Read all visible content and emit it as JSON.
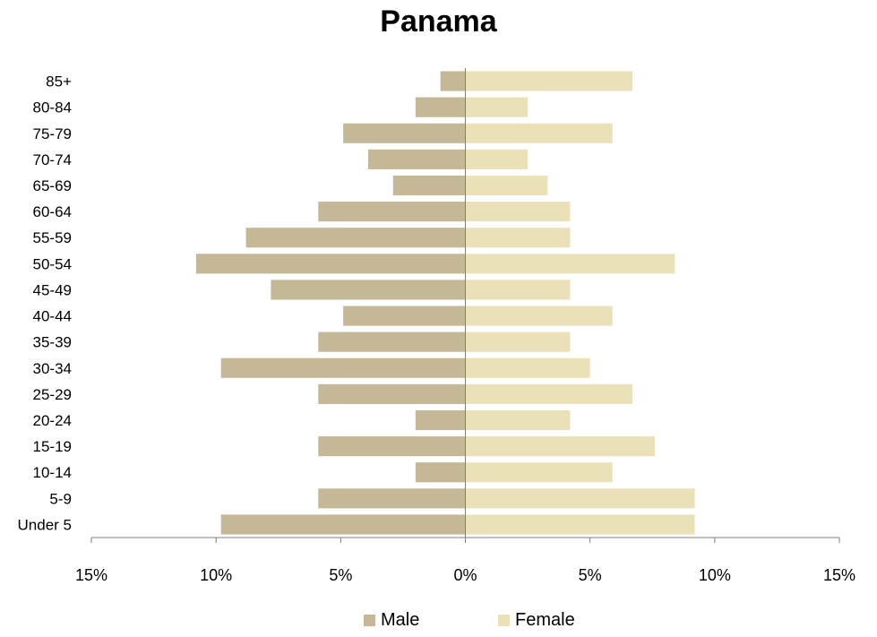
{
  "chart_data": {
    "type": "bar",
    "orientation": "horizontal",
    "title": "Panama",
    "categories": [
      "Under 5",
      "5-9",
      "10-14",
      "15-19",
      "20-24",
      "25-29",
      "30-34",
      "35-39",
      "40-44",
      "45-49",
      "50-54",
      "55-59",
      "60-64",
      "65-69",
      "70-74",
      "75-79",
      "80-84",
      "85+"
    ],
    "series": [
      {
        "name": "Male",
        "color": "#c4b896",
        "values": [
          9.8,
          5.9,
          2.0,
          5.9,
          2.0,
          5.9,
          9.8,
          5.9,
          4.9,
          7.8,
          10.8,
          8.8,
          5.9,
          2.9,
          3.9,
          4.9,
          2.0,
          1.0
        ]
      },
      {
        "name": "Female",
        "color": "#ebe1b9",
        "values": [
          9.2,
          9.2,
          5.9,
          7.6,
          4.2,
          6.7,
          5.0,
          4.2,
          5.9,
          4.2,
          8.4,
          4.2,
          4.2,
          3.3,
          2.5,
          5.9,
          2.5,
          6.7
        ]
      }
    ],
    "xlim": [
      -15,
      15
    ],
    "xticks": [
      -15,
      -10,
      -5,
      0,
      5,
      10,
      15
    ],
    "xtick_labels": [
      "15%",
      "10%",
      "5%",
      "0%",
      "5%",
      "10%",
      "15%"
    ],
    "grid": false,
    "legend_position": "bottom"
  }
}
